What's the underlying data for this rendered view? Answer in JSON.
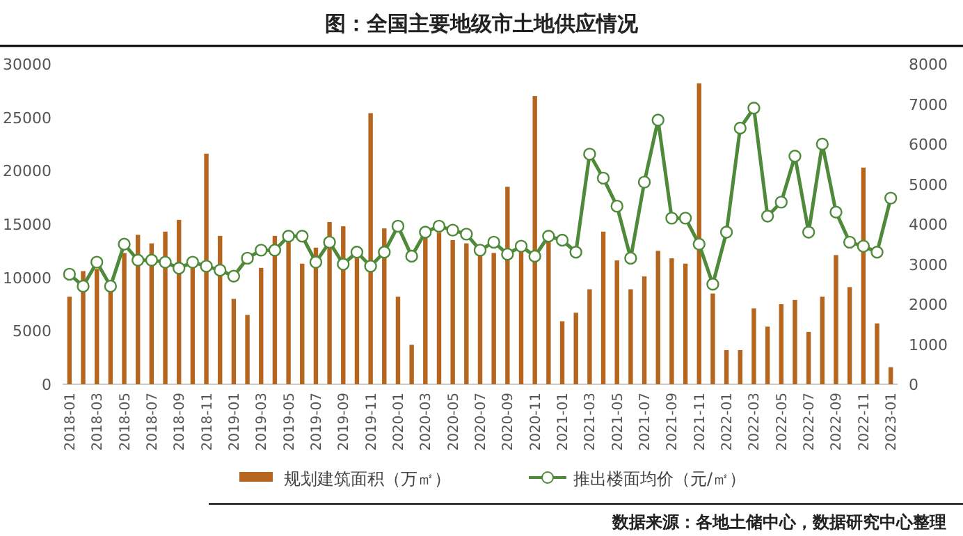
{
  "chart_data": {
    "type": "bar",
    "title": "图：全国主要地级市土地供应情况",
    "categories": [
      "2018-01",
      null,
      "2018-03",
      null,
      "2018-05",
      null,
      "2018-07",
      null,
      "2018-09",
      null,
      "2018-11",
      null,
      "2019-01",
      null,
      "2019-03",
      null,
      "2019-05",
      null,
      "2019-07",
      null,
      "2019-09",
      null,
      "2019-11",
      null,
      "2020-01",
      null,
      "2020-03",
      null,
      "2020-05",
      null,
      "2020-07",
      null,
      "2020-09",
      null,
      "2020-11",
      null,
      "2021-01",
      null,
      "2021-03",
      null,
      "2021-05",
      null,
      "2021-07",
      null,
      "2021-09",
      null,
      "2021-11",
      null,
      "2022-01",
      null,
      "2022-03",
      null,
      "2022-05",
      null,
      "2022-07",
      null,
      "2022-09",
      null,
      "2022-11",
      null,
      "2023-01"
    ],
    "series": [
      {
        "name": "规划建筑面积（万㎡）",
        "color": "#b5651d",
        "values": [
          8200,
          10600,
          10800,
          9300,
          12300,
          14000,
          13200,
          14300,
          15400,
          11200,
          21600,
          13900,
          8000,
          6500,
          10900,
          13900,
          13500,
          11300,
          12800,
          15200,
          14800,
          11800,
          25400,
          14600,
          8200,
          3700,
          13700,
          14200,
          13500,
          13200,
          12400,
          12300,
          18500,
          12500,
          27000,
          13500,
          5900,
          6700,
          8900,
          14300,
          11600,
          8900,
          10100,
          12500,
          11800,
          11300,
          28200,
          8500,
          3200,
          3200,
          7100,
          5400,
          7500,
          7900,
          4900,
          8200,
          12100,
          9100,
          20300,
          5700,
          1600
        ]
      },
      {
        "name": "推出楼面均价（元/㎡）",
        "type": "line",
        "axis": "y2",
        "color": "#4e8a3a",
        "marker": "circle",
        "values": [
          2750,
          2450,
          3050,
          2450,
          3500,
          3100,
          3100,
          3050,
          2900,
          3050,
          2950,
          2850,
          2700,
          3150,
          3350,
          3350,
          3700,
          3700,
          3050,
          3550,
          3000,
          3300,
          2950,
          3300,
          3950,
          3200,
          3800,
          3950,
          3850,
          3750,
          3350,
          3550,
          3250,
          3450,
          3200,
          3700,
          3600,
          3300,
          5750,
          5150,
          4450,
          3150,
          5050,
          6600,
          4150,
          4150,
          3500,
          2500,
          3800,
          6400,
          6900,
          4200,
          4550,
          5700,
          3800,
          6000,
          4300,
          3550,
          3450,
          3300,
          4650
        ]
      }
    ],
    "ylim": [
      0,
      30000
    ],
    "yticks": [
      0,
      5000,
      10000,
      15000,
      20000,
      25000,
      30000
    ],
    "y2lim": [
      0,
      8000
    ],
    "y2ticks": [
      0,
      1000,
      2000,
      3000,
      4000,
      5000,
      6000,
      7000,
      8000
    ],
    "legend": "bottom",
    "annotations": [
      "数据来源：各地土储中心，数据研究中心整理"
    ]
  }
}
